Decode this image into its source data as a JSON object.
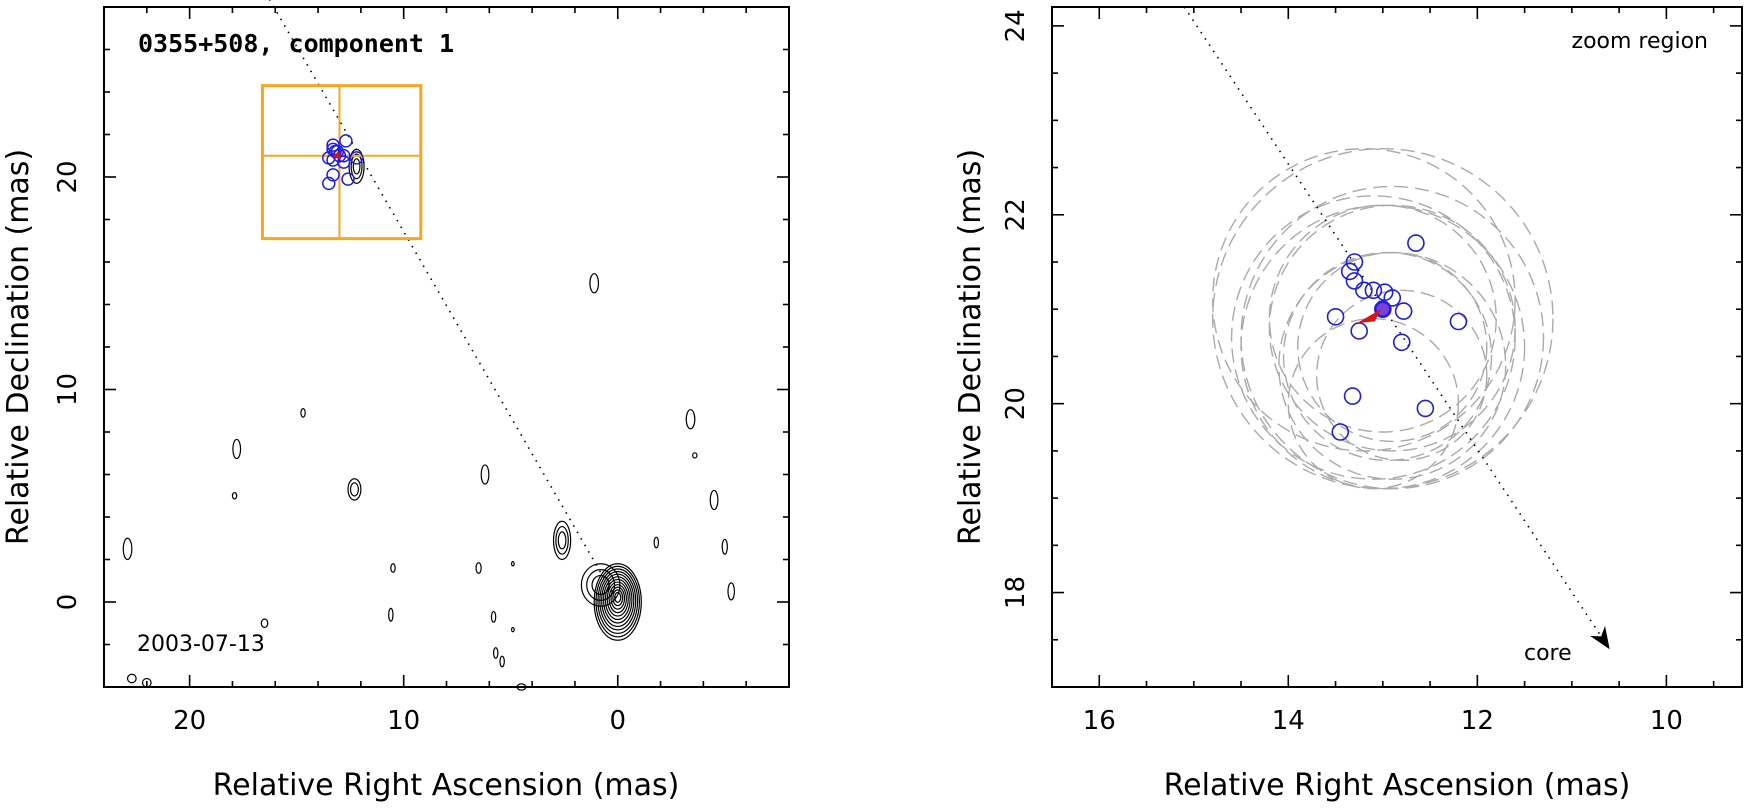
{
  "chart_data": [
    {
      "type": "scatter",
      "title": "0355+508, component 1",
      "xlabel": "Relative Right Ascension (mas)",
      "ylabel": "Relative Declination (mas)",
      "xlim": [
        24,
        -8
      ],
      "ylim": [
        -4,
        28
      ],
      "x_ticks": [
        20,
        10,
        0
      ],
      "y_ticks": [
        20,
        10,
        0
      ],
      "date_label": "2003-07-13",
      "zoom_box": {
        "x": [
          16.6,
          9.2
        ],
        "y": [
          24.3,
          17.1
        ],
        "center": [
          13.0,
          21.0
        ],
        "color": "#f5a623"
      },
      "trajectory": {
        "from": [
          17.5,
          30.5
        ],
        "to": [
          0,
          0
        ]
      },
      "positions": {
        "color": "#1f1fdc",
        "points": [
          [
            13.0,
            21.0
          ],
          [
            13.1,
            21.2
          ],
          [
            13.3,
            21.3
          ],
          [
            13.3,
            21.5
          ],
          [
            13.2,
            21.2
          ],
          [
            12.7,
            21.7
          ],
          [
            12.8,
            21.0
          ],
          [
            12.2,
            20.9
          ],
          [
            13.5,
            20.9
          ],
          [
            13.3,
            20.8
          ],
          [
            12.8,
            20.7
          ],
          [
            13.3,
            20.1
          ],
          [
            12.6,
            19.9
          ],
          [
            13.5,
            19.7
          ]
        ]
      },
      "mean_position": {
        "x": 13.0,
        "y": 21.0,
        "color": "#e01010"
      },
      "contour_sources": [
        [
          0,
          0,
          1.1,
          1.8,
          12
        ],
        [
          0.8,
          0.8,
          0.9,
          1.0,
          3
        ],
        [
          2.6,
          2.9,
          0.4,
          0.9,
          3
        ],
        [
          12.2,
          20.5,
          0.35,
          0.8,
          3
        ],
        [
          12.3,
          5.3,
          0.3,
          0.5,
          2
        ],
        [
          1.1,
          15.0,
          0.2,
          0.45,
          1
        ],
        [
          22.9,
          2.5,
          0.2,
          0.5,
          1
        ],
        [
          17.8,
          7.2,
          0.18,
          0.45,
          1
        ],
        [
          6.2,
          6.0,
          0.18,
          0.45,
          1
        ],
        [
          -3.4,
          8.6,
          0.2,
          0.45,
          1
        ],
        [
          -4.5,
          4.8,
          0.18,
          0.45,
          1
        ],
        [
          -5.3,
          0.5,
          0.15,
          0.4,
          1
        ],
        [
          -5.0,
          2.6,
          0.12,
          0.35,
          1
        ],
        [
          -1.8,
          2.8,
          0.1,
          0.25,
          1
        ],
        [
          -3.6,
          6.9,
          0.1,
          0.12,
          1
        ],
        [
          14.7,
          8.9,
          0.1,
          0.2,
          1
        ],
        [
          17.9,
          5.0,
          0.1,
          0.15,
          1
        ],
        [
          10.5,
          1.6,
          0.1,
          0.2,
          1
        ],
        [
          6.5,
          1.6,
          0.12,
          0.25,
          1
        ],
        [
          5.8,
          -0.7,
          0.1,
          0.25,
          1
        ],
        [
          10.6,
          -0.6,
          0.1,
          0.3,
          1
        ],
        [
          4.9,
          -1.3,
          0.06,
          0.1,
          1
        ],
        [
          5.7,
          -2.4,
          0.1,
          0.25,
          1
        ],
        [
          5.4,
          -2.8,
          0.1,
          0.25,
          1
        ],
        [
          16.5,
          -1.0,
          0.15,
          0.2,
          1
        ],
        [
          22.0,
          -3.8,
          0.2,
          0.2,
          1
        ],
        [
          22.7,
          -3.6,
          0.2,
          0.2,
          1
        ],
        [
          4.9,
          1.8,
          0.06,
          0.1,
          1
        ],
        [
          4.5,
          -4.0,
          0.2,
          0.15,
          1
        ]
      ]
    },
    {
      "type": "scatter",
      "title": "zoom region",
      "xlabel": "Relative Right Ascension (mas)",
      "ylabel": "Relative Declination (mas)",
      "xlim": [
        16.5,
        9.2
      ],
      "ylim": [
        17.0,
        24.2
      ],
      "x_ticks": [
        16,
        14,
        12,
        10
      ],
      "y_ticks": [
        24,
        22,
        20,
        18
      ],
      "core_label": "core",
      "trajectory": {
        "from": [
          15.1,
          24.2
        ],
        "to": [
          10.6,
          17.4
        ]
      },
      "positions": {
        "color": "#1f1fdc",
        "points": [
          [
            13.0,
            21.0
          ],
          [
            13.1,
            21.2
          ],
          [
            13.3,
            21.3
          ],
          [
            13.3,
            21.5
          ],
          [
            13.2,
            21.2
          ],
          [
            13.35,
            21.4
          ],
          [
            12.98,
            21.18
          ],
          [
            12.9,
            21.12
          ],
          [
            12.65,
            21.7
          ],
          [
            12.78,
            20.98
          ],
          [
            12.2,
            20.87
          ],
          [
            13.5,
            20.92
          ],
          [
            13.25,
            20.77
          ],
          [
            12.8,
            20.65
          ],
          [
            13.32,
            20.08
          ],
          [
            12.55,
            19.95
          ],
          [
            13.45,
            19.7
          ]
        ]
      },
      "mean_position": {
        "x": 13.0,
        "y": 21.0,
        "color": "#e01010"
      },
      "uncertainty_circles": {
        "color": "#aaaaaa",
        "items": [
          [
            13.0,
            20.9,
            1.8
          ],
          [
            13.0,
            20.6,
            1.5
          ],
          [
            12.9,
            20.8,
            1.3
          ],
          [
            13.1,
            20.7,
            1.5
          ],
          [
            13.0,
            20.9,
            1.2
          ],
          [
            12.9,
            20.6,
            1.0
          ],
          [
            13.2,
            21.1,
            1.6
          ],
          [
            12.8,
            20.3,
            0.9
          ],
          [
            12.9,
            20.4,
            1.2
          ],
          [
            12.9,
            20.7,
            1.6
          ],
          [
            13.1,
            20.0,
            0.9
          ],
          [
            12.95,
            20.5,
            1.1
          ]
        ]
      }
    }
  ]
}
